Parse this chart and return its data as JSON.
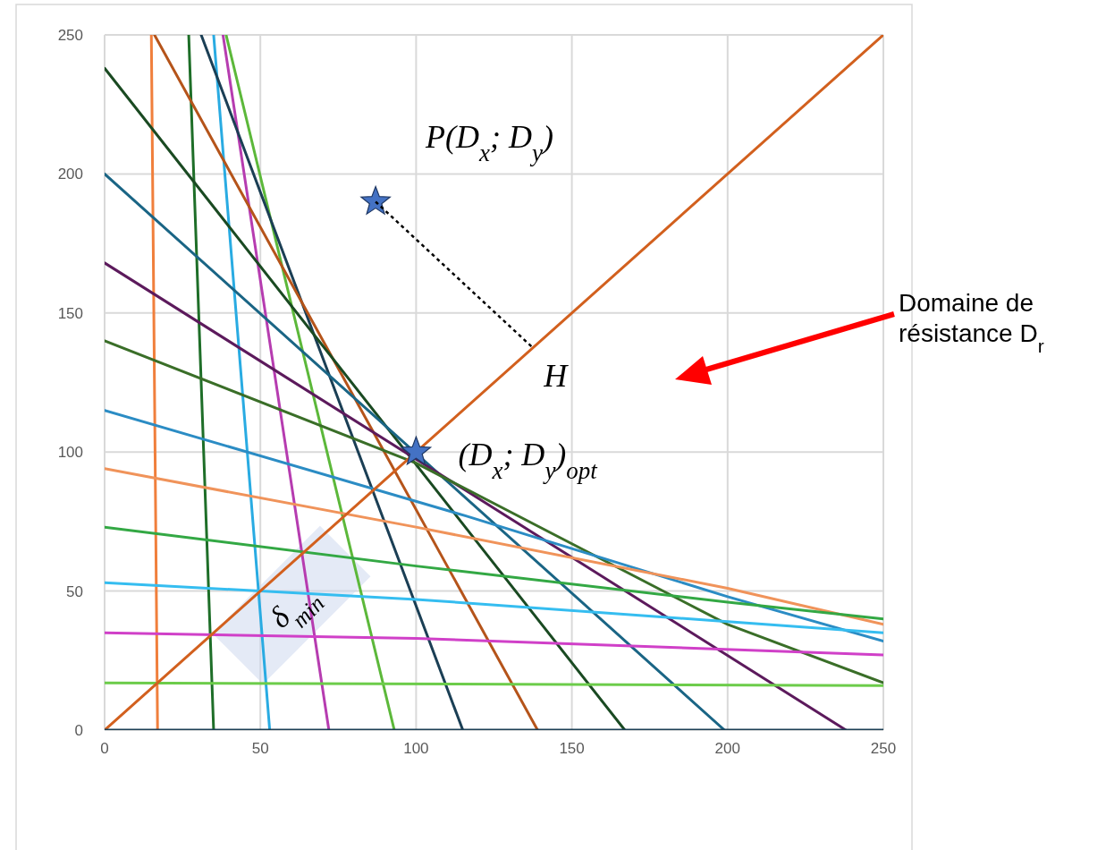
{
  "chart_data": {
    "type": "line",
    "xlim": [
      0,
      250
    ],
    "ylim": [
      0,
      250
    ],
    "xticks": [
      0,
      50,
      100,
      150,
      200,
      250
    ],
    "yticks": [
      0,
      50,
      100,
      150,
      200,
      250
    ],
    "grid": true,
    "line_style": "solid",
    "series": [
      {
        "color": "#f07f3c",
        "x": [
          15,
          17
        ],
        "values": [
          250,
          0
        ]
      },
      {
        "color": "#1e6e28",
        "x": [
          27,
          35
        ],
        "values": [
          250,
          0
        ]
      },
      {
        "color": "#29abe2",
        "x": [
          35,
          53
        ],
        "values": [
          250,
          0
        ]
      },
      {
        "color": "#b63cb0",
        "x": [
          38,
          72
        ],
        "values": [
          250,
          0
        ]
      },
      {
        "color": "#5cb83a",
        "x": [
          39,
          93
        ],
        "values": [
          250,
          0
        ]
      },
      {
        "color": "#1b3f55",
        "x": [
          31,
          115
        ],
        "values": [
          250,
          0
        ]
      },
      {
        "color": "#b5541a",
        "x": [
          16,
          139
        ],
        "values": [
          250,
          0
        ]
      },
      {
        "color": "#1a4a22",
        "x": [
          0,
          167
        ],
        "values": [
          238,
          0
        ]
      },
      {
        "color": "#1a6585",
        "x": [
          0,
          199
        ],
        "values": [
          200,
          0
        ]
      },
      {
        "color": "#5c1a5c",
        "x": [
          0,
          238
        ],
        "values": [
          168,
          0
        ]
      },
      {
        "color": "#3a6e28",
        "x": [
          0,
          100,
          200,
          250
        ],
        "values": [
          140,
          96,
          38,
          17
        ]
      },
      {
        "color": "#2b8cc4",
        "x": [
          0,
          116,
          200,
          250
        ],
        "values": [
          115,
          77,
          48,
          32
        ]
      },
      {
        "color": "#f0935a",
        "x": [
          0,
          100,
          200,
          250
        ],
        "values": [
          94,
          73,
          51,
          38
        ]
      },
      {
        "color": "#33a844",
        "x": [
          0,
          100,
          200,
          250
        ],
        "values": [
          73,
          59,
          46,
          40
        ]
      },
      {
        "color": "#35bdf0",
        "x": [
          0,
          100,
          200,
          250
        ],
        "values": [
          53,
          47,
          39,
          35
        ]
      },
      {
        "color": "#d040c8",
        "x": [
          0,
          100,
          250
        ],
        "values": [
          35,
          33,
          27
        ]
      },
      {
        "color": "#6ccc4a",
        "x": [
          0,
          250
        ],
        "values": [
          17,
          16
        ]
      },
      {
        "color": "#d2601e",
        "x": [
          0,
          250
        ],
        "values": [
          0,
          250
        ]
      },
      {
        "color": "#1b3f55",
        "x": [
          0,
          250
        ],
        "values": [
          0,
          0
        ]
      },
      {
        "color": "#000000",
        "x": [
          87,
          137
        ],
        "values": [
          190,
          138
        ],
        "line_style": "dotted"
      },
      {
        "type": "scatter",
        "marker": "star",
        "color": "#4472c4",
        "x": [
          87,
          100
        ],
        "values": [
          190,
          100
        ]
      }
    ],
    "annotations": [
      {
        "text": "P(D$_{x}$; D$_{y}$)",
        "x": 87,
        "y": 190
      },
      {
        "text": "(D$_{x}$; D$_{y}$)$_{opt}$",
        "x": 100,
        "y": 100
      },
      {
        "text": "H",
        "x": 137,
        "y": 138
      },
      "Domaine de résistance D$_{r}$",
      "δ$_{min}$"
    ]
  }
}
